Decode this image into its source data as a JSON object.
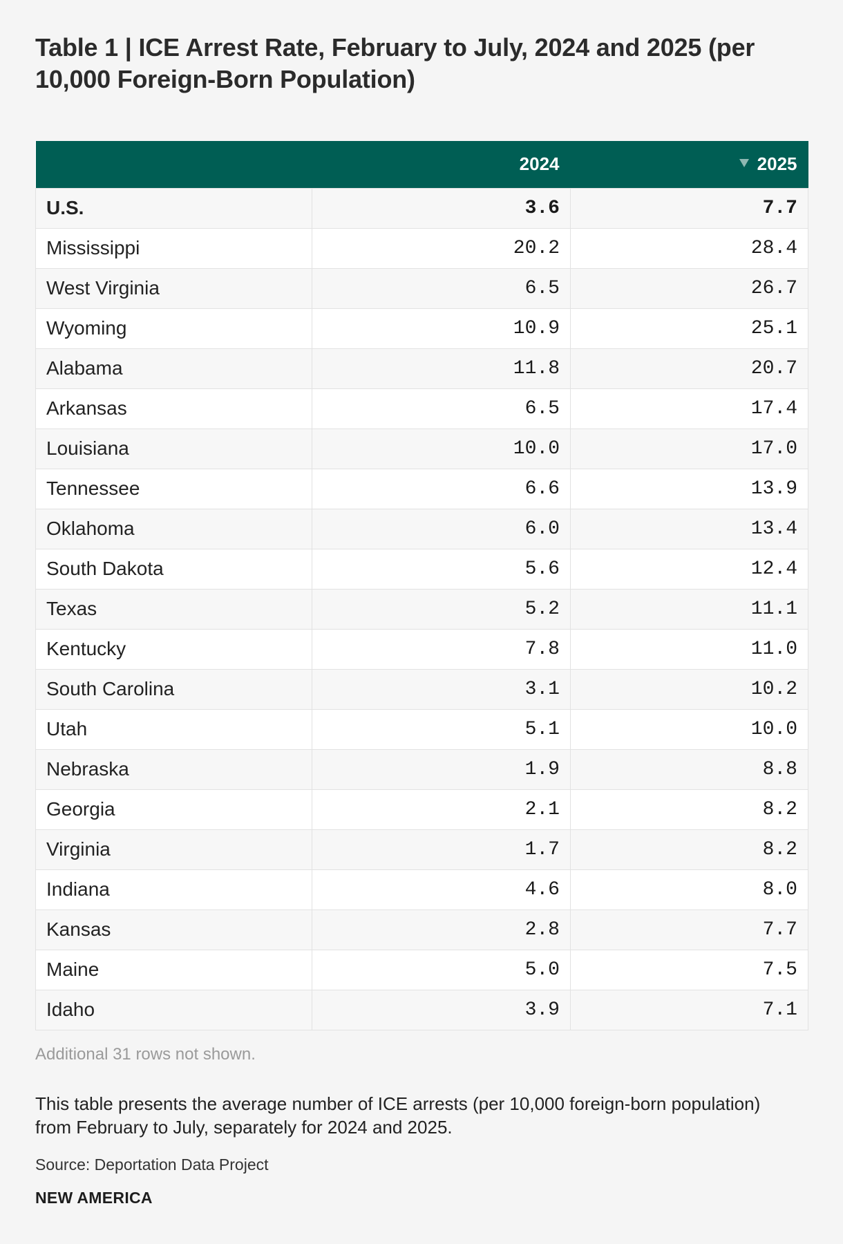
{
  "title": "Table 1 | ICE Arrest Rate, February to July, 2024 and 2025 (per 10,000 Foreign-Born Population)",
  "colors": {
    "header_bg": "#005e54",
    "header_text": "#ffffff",
    "page_bg": "#f5f5f5"
  },
  "chart_data": {
    "type": "table",
    "title": "Table 1 | ICE Arrest Rate, February to July, 2024 and 2025 (per 10,000 Foreign-Born Population)",
    "columns": [
      "",
      "2024",
      "2025"
    ],
    "sorted_column": "2025",
    "sort_direction": "descending",
    "rows": [
      {
        "state": "U.S.",
        "v2024": "3.6",
        "v2025": "7.7"
      },
      {
        "state": "Mississippi",
        "v2024": "20.2",
        "v2025": "28.4"
      },
      {
        "state": "West Virginia",
        "v2024": "6.5",
        "v2025": "26.7"
      },
      {
        "state": "Wyoming",
        "v2024": "10.9",
        "v2025": "25.1"
      },
      {
        "state": "Alabama",
        "v2024": "11.8",
        "v2025": "20.7"
      },
      {
        "state": "Arkansas",
        "v2024": "6.5",
        "v2025": "17.4"
      },
      {
        "state": "Louisiana",
        "v2024": "10.0",
        "v2025": "17.0"
      },
      {
        "state": "Tennessee",
        "v2024": "6.6",
        "v2025": "13.9"
      },
      {
        "state": "Oklahoma",
        "v2024": "6.0",
        "v2025": "13.4"
      },
      {
        "state": "South Dakota",
        "v2024": "5.6",
        "v2025": "12.4"
      },
      {
        "state": "Texas",
        "v2024": "5.2",
        "v2025": "11.1"
      },
      {
        "state": "Kentucky",
        "v2024": "7.8",
        "v2025": "11.0"
      },
      {
        "state": "South Carolina",
        "v2024": "3.1",
        "v2025": "10.2"
      },
      {
        "state": "Utah",
        "v2024": "5.1",
        "v2025": "10.0"
      },
      {
        "state": "Nebraska",
        "v2024": "1.9",
        "v2025": "8.8"
      },
      {
        "state": "Georgia",
        "v2024": "2.1",
        "v2025": "8.2"
      },
      {
        "state": "Virginia",
        "v2024": "1.7",
        "v2025": "8.2"
      },
      {
        "state": "Indiana",
        "v2024": "4.6",
        "v2025": "8.0"
      },
      {
        "state": "Kansas",
        "v2024": "2.8",
        "v2025": "7.7"
      },
      {
        "state": "Maine",
        "v2024": "5.0",
        "v2025": "7.5"
      },
      {
        "state": "Idaho",
        "v2024": "3.9",
        "v2025": "7.1"
      }
    ]
  },
  "footer": {
    "rows_note": "Additional 31 rows not shown.",
    "description": "This table presents the average number of ICE arrests (per 10,000 foreign-born population) from February to July, separately for 2024 and 2025.",
    "source": "Source: Deportation Data Project",
    "brand": "NEW AMERICA"
  }
}
